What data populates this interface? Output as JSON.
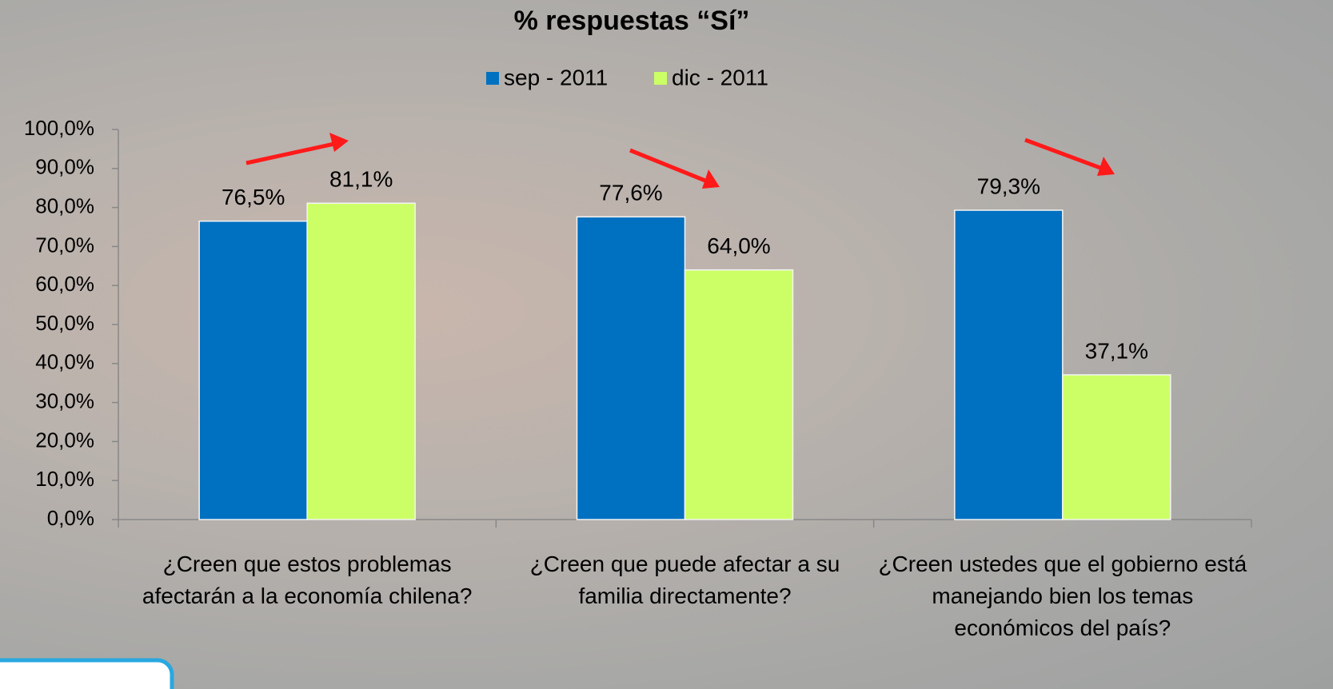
{
  "chart_data": {
    "type": "bar",
    "title": "% respuestas “Sí”",
    "categories": [
      "¿Creen que estos problemas afectarán a la economía chilena?",
      "¿Creen que puede afectar a su familia directamente?",
      "¿Creen ustedes que el gobierno está manejando bien los temas económicos del país?"
    ],
    "series": [
      {
        "name": "sep - 2011",
        "color": "#0070c0",
        "values": [
          76.5,
          77.6,
          79.3
        ],
        "value_labels": [
          "76,5%",
          "77,6%",
          "79,3%"
        ]
      },
      {
        "name": "dic - 2011",
        "color": "#ccff66",
        "values": [
          81.1,
          64.0,
          37.1
        ],
        "value_labels": [
          "81,1%",
          "64,0%",
          "37,1%"
        ]
      }
    ],
    "ylim": [
      0,
      100
    ],
    "yticks": [
      {
        "value": 0,
        "label": "0,0%"
      },
      {
        "value": 10,
        "label": "10,0%"
      },
      {
        "value": 20,
        "label": "20,0%"
      },
      {
        "value": 30,
        "label": "30,0%"
      },
      {
        "value": 40,
        "label": "40,0%"
      },
      {
        "value": 50,
        "label": "50,0%"
      },
      {
        "value": 60,
        "label": "60,0%"
      },
      {
        "value": 70,
        "label": "70,0%"
      },
      {
        "value": 80,
        "label": "80,0%"
      },
      {
        "value": 90,
        "label": "90,0%"
      },
      {
        "value": 100,
        "label": "100,0%"
      }
    ],
    "grid": false,
    "legend": "top"
  }
}
